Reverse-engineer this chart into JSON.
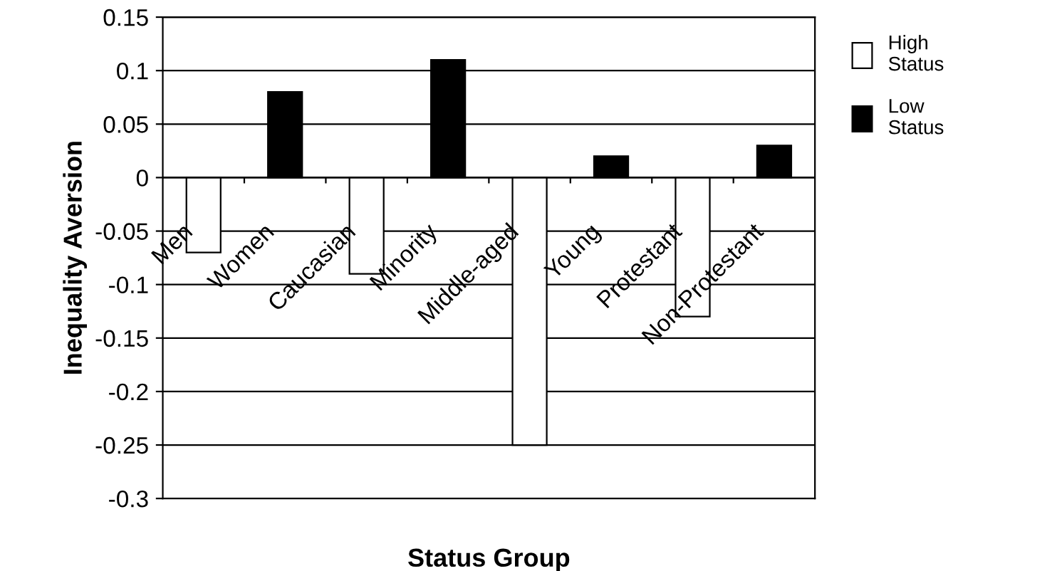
{
  "chart_data": {
    "type": "bar",
    "xlabel": "Status Group",
    "ylabel": "Inequality Aversion",
    "categories": [
      "Men",
      "Women",
      "Caucasian",
      "Minority",
      "Middle-aged",
      "Young",
      "Protestant",
      "Non-Protestant"
    ],
    "series": [
      {
        "name": "High Status",
        "color": "#ffffff",
        "values": [
          -0.07,
          null,
          -0.09,
          null,
          -0.25,
          null,
          -0.13,
          null
        ]
      },
      {
        "name": "Low Status",
        "color": "#000000",
        "values": [
          null,
          0.08,
          null,
          0.11,
          null,
          0.02,
          null,
          0.03
        ]
      }
    ],
    "ylim": [
      -0.3,
      0.15
    ],
    "yticks": [
      -0.3,
      -0.25,
      -0.2,
      -0.15,
      -0.1,
      -0.05,
      0,
      0.05,
      0.1,
      0.15
    ],
    "grid": "y",
    "legend": "right"
  }
}
